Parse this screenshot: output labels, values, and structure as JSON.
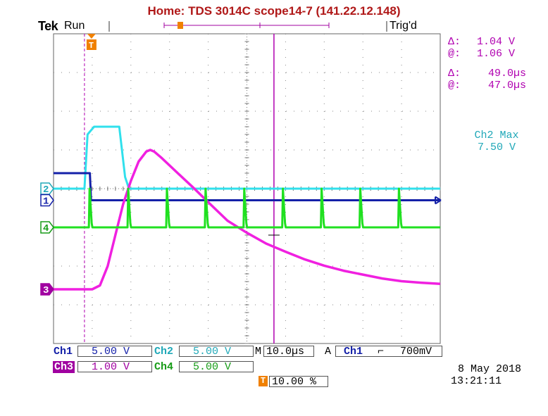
{
  "header": {
    "title": "Home:  TDS 3014C  scope14-7  (141.22.12.148)",
    "brand": "Tek",
    "run_state": "Run",
    "trigger_state": "Trig'd"
  },
  "cursor_readouts": {
    "voltage": {
      "delta_label": "Δ:",
      "delta": "1.04 V",
      "at_label": "@:",
      "at": "1.06 V"
    },
    "time": {
      "delta_label": "Δ:",
      "delta": "49.0µs",
      "at_label": "@:",
      "at": "47.0µs"
    }
  },
  "measurement": {
    "label": "Ch2 Max",
    "value": "7.50 V"
  },
  "channel_markers": [
    "2",
    "1",
    "4",
    "3"
  ],
  "trigger_marker": "T",
  "bottom": {
    "ch1_label": "Ch1",
    "ch1_scale": "5.00 V",
    "ch2_label": "Ch2",
    "ch2_scale": "5.00 V",
    "ch3_label": "Ch3",
    "ch3_scale": "1.00 V",
    "ch4_label": "Ch4",
    "ch4_scale": "5.00 V",
    "timebase_label": "M",
    "timebase": "10.0µs",
    "trigger_label": "A",
    "trigger_source": "Ch1",
    "trigger_slope": "⌐",
    "trigger_level": "700mV",
    "trigger_position_icon": "T",
    "trigger_position": "10.00 %",
    "date": "8 May 2018",
    "time": "13:21:11"
  },
  "colors": {
    "ch1": "#1420a8",
    "ch2": "#30e0ec",
    "ch3": "#f020e0",
    "ch4": "#20e020",
    "cursor": "#b000b0",
    "title": "#b01818",
    "trigger": "#f08000"
  },
  "chart_data": {
    "type": "line",
    "xlim": [
      -10,
      90
    ],
    "ylim": [
      -4,
      4
    ],
    "x_unit": "µs",
    "grid": true,
    "series": [
      {
        "channel": "Ch2",
        "points": [
          [
            -10,
            0
          ],
          [
            -2,
            0
          ],
          [
            -1.2,
            1.4
          ],
          [
            0.5,
            1.6
          ],
          [
            7,
            1.6
          ],
          [
            8.5,
            0.3
          ],
          [
            9.5,
            0
          ],
          [
            90,
            0
          ]
        ]
      },
      {
        "channel": "Ch1",
        "points": [
          [
            -10,
            0.4
          ],
          [
            -0.6,
            0.4
          ],
          [
            -0.3,
            -0.3
          ],
          [
            90,
            -0.3
          ]
        ]
      },
      {
        "channel": "Ch3",
        "points": [
          [
            -10,
            -2.6
          ],
          [
            0,
            -2.6
          ],
          [
            2,
            -2.5
          ],
          [
            4,
            -2.0
          ],
          [
            6,
            -1.2
          ],
          [
            8,
            -0.4
          ],
          [
            10,
            0.2
          ],
          [
            12,
            0.7
          ],
          [
            14,
            0.96
          ],
          [
            15,
            1.0
          ],
          [
            16,
            0.96
          ],
          [
            18,
            0.79
          ],
          [
            22,
            0.41
          ],
          [
            26,
            0.04
          ],
          [
            30,
            -0.35
          ],
          [
            35,
            -0.83
          ],
          [
            40,
            -1.14
          ],
          [
            45,
            -1.42
          ],
          [
            50,
            -1.63
          ],
          [
            55,
            -1.83
          ],
          [
            60,
            -1.99
          ],
          [
            65,
            -2.12
          ],
          [
            70,
            -2.22
          ],
          [
            75,
            -2.32
          ],
          [
            80,
            -2.39
          ],
          [
            85,
            -2.43
          ],
          [
            90,
            -2.46
          ]
        ]
      },
      {
        "channel": "Ch4",
        "spikes_at": [
          -0.5,
          9.5,
          19.5,
          29.5,
          39.5,
          49.5,
          59.5,
          69.5,
          79.5
        ],
        "baseline": -1.0,
        "spike_height": 0.25
      }
    ],
    "cursors": {
      "vertical_x": [
        -2.0,
        47.0
      ],
      "horizontal_y": [
        -0.16,
        -1.2
      ]
    }
  }
}
